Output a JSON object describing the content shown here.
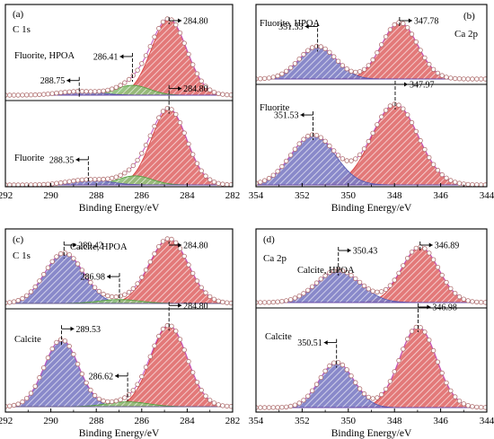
{
  "chart_data": [
    {
      "id": "a",
      "type": "line",
      "panel_label": "(a)",
      "element": "C 1s",
      "xlabel": "Binding Energy/eV",
      "xlim": [
        292,
        282
      ],
      "xticks": [
        292,
        290,
        288,
        286,
        284,
        282
      ],
      "sub": [
        {
          "label": "Fluorite, HPOA",
          "annotations": [
            "288.75",
            "286.41",
            "284.80"
          ],
          "peaks": [
            {
              "center": 284.8,
              "height": 1.0,
              "sigma": 0.78,
              "color": "#d94040"
            },
            {
              "center": 286.41,
              "height": 0.13,
              "sigma": 0.75,
              "color": "#55a040"
            },
            {
              "center": 288.75,
              "height": 0.05,
              "sigma": 0.9,
              "color": "#5a5ab0"
            }
          ]
        },
        {
          "label": "Fluorite",
          "annotations": [
            "288.35",
            "284.80"
          ],
          "peaks": [
            {
              "center": 284.8,
              "height": 1.0,
              "sigma": 0.78,
              "color": "#d94040"
            },
            {
              "center": 286.3,
              "height": 0.12,
              "sigma": 0.75,
              "color": "#55a040"
            },
            {
              "center": 288.35,
              "height": 0.07,
              "sigma": 0.9,
              "color": "#5a5ab0"
            }
          ]
        }
      ]
    },
    {
      "id": "b",
      "type": "line",
      "panel_label": "(b)",
      "element": "Ca 2p",
      "xlabel": "Binding Energy/eV",
      "xlim": [
        354,
        344
      ],
      "xticks": [
        354,
        352,
        350,
        348,
        346,
        344
      ],
      "sub": [
        {
          "label": "Fluorite, HPOA",
          "annotations": [
            "351.33",
            "347.78"
          ],
          "peaks": [
            {
              "center": 347.78,
              "height": 1.0,
              "sigma": 0.78,
              "color": "#d94040"
            },
            {
              "center": 351.33,
              "height": 0.58,
              "sigma": 0.8,
              "color": "#5a5ab0"
            }
          ]
        },
        {
          "label": "Fluorite",
          "annotations": [
            "351.53",
            "347.97"
          ],
          "peaks": [
            {
              "center": 347.97,
              "height": 1.0,
              "sigma": 1.0,
              "color": "#d94040"
            },
            {
              "center": 351.53,
              "height": 0.62,
              "sigma": 0.95,
              "color": "#5a5ab0"
            }
          ]
        }
      ]
    },
    {
      "id": "c",
      "type": "line",
      "panel_label": "(c)",
      "element": "C 1s",
      "xlabel": "Binding Energy/eV",
      "xlim": [
        292,
        282
      ],
      "xticks": [
        292,
        290,
        288,
        286,
        284,
        282
      ],
      "sub": [
        {
          "label": "Calcite, HPOA",
          "annotations": [
            "289.42",
            "286.98",
            "284.80"
          ],
          "peaks": [
            {
              "center": 284.8,
              "height": 1.0,
              "sigma": 0.85,
              "color": "#d94040"
            },
            {
              "center": 289.42,
              "height": 0.78,
              "sigma": 0.85,
              "color": "#5a5ab0"
            },
            {
              "center": 286.98,
              "height": 0.06,
              "sigma": 0.9,
              "color": "#55a040"
            }
          ]
        },
        {
          "label": "Calcite",
          "annotations": [
            "289.53",
            "286.62",
            "284.80"
          ],
          "peaks": [
            {
              "center": 284.8,
              "height": 1.0,
              "sigma": 0.8,
              "color": "#d94040"
            },
            {
              "center": 289.53,
              "height": 0.83,
              "sigma": 0.75,
              "color": "#5a5ab0"
            },
            {
              "center": 286.62,
              "height": 0.06,
              "sigma": 0.9,
              "color": "#55a040"
            }
          ]
        }
      ]
    },
    {
      "id": "d",
      "type": "line",
      "panel_label": "(d)",
      "element": "Ca 2p",
      "xlabel": "Binding Energy/eV",
      "xlim": [
        354,
        344
      ],
      "xticks": [
        354,
        352,
        350,
        348,
        346,
        344
      ],
      "sub": [
        {
          "label": "Calcite, HPOA",
          "annotations": [
            "350.43",
            "346.89"
          ],
          "peaks": [
            {
              "center": 346.89,
              "height": 1.0,
              "sigma": 0.8,
              "color": "#d94040"
            },
            {
              "center": 350.43,
              "height": 0.58,
              "sigma": 0.95,
              "color": "#5a5ab0"
            }
          ]
        },
        {
          "label": "Calcite",
          "annotations": [
            "350.51",
            "346.98"
          ],
          "peaks": [
            {
              "center": 346.98,
              "height": 1.0,
              "sigma": 0.8,
              "color": "#d94040"
            },
            {
              "center": 350.51,
              "height": 0.56,
              "sigma": 0.75,
              "color": "#5a5ab0"
            }
          ]
        }
      ]
    }
  ]
}
